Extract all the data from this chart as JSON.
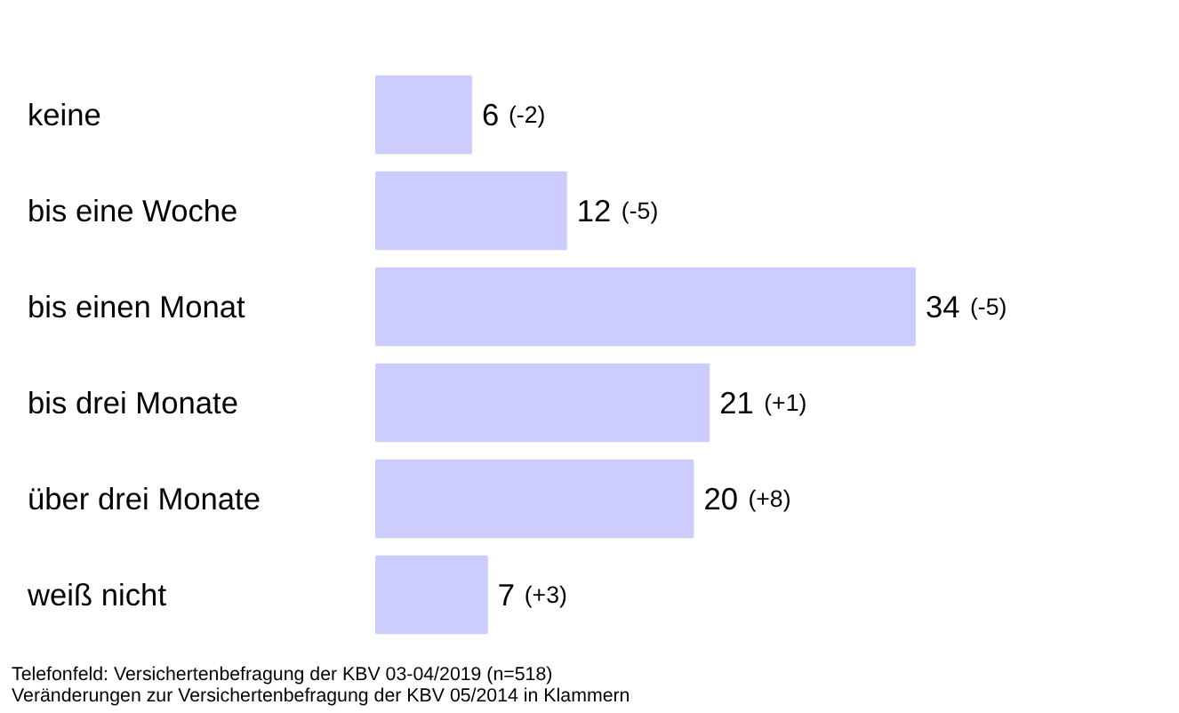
{
  "chart_data": {
    "type": "bar",
    "orientation": "horizontal",
    "categories": [
      "keine",
      "bis eine Woche",
      "bis einen Monat",
      "bis drei Monate",
      "über drei Monate",
      "weiß nicht"
    ],
    "values": [
      6,
      12,
      34,
      21,
      20,
      7
    ],
    "value_labels": [
      "6 (-2)",
      "12 (-5)",
      "34 (-5)",
      "21 (+1)",
      "20 (+8)",
      "7 (+3)"
    ],
    "color": "#ccccff",
    "annotations": [
      "Telefonfeld: Versichertenbefragung der KBV 03-04/2019 (n=518)",
      "Veränderungen zur Versichertenbefragung der KBV 05/2014 in Klammern"
    ],
    "grid": false
  }
}
